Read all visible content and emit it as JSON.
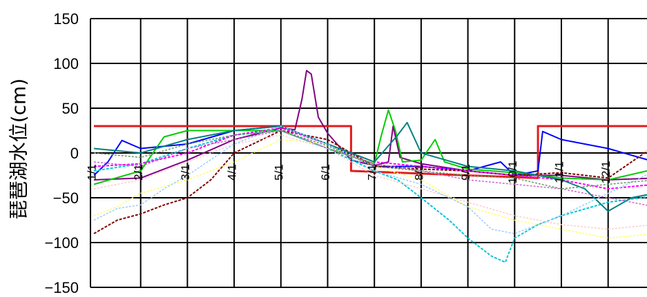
{
  "chart_data": {
    "type": "line",
    "title": "",
    "xlabel": "",
    "ylabel": "琵琶湖水位(cm)",
    "ylim": [
      -150,
      150
    ],
    "yticks": [
      150,
      100,
      50,
      0,
      -50,
      -100,
      -150
    ],
    "xlim": [
      0,
      12
    ],
    "xticks": [
      {
        "x": 0,
        "label": "1/1"
      },
      {
        "x": 1,
        "label": "2/1"
      },
      {
        "x": 2,
        "label": "3/1"
      },
      {
        "x": 3,
        "label": "4/1"
      },
      {
        "x": 4,
        "label": "5/1"
      },
      {
        "x": 5,
        "label": "6/1"
      },
      {
        "x": 6,
        "label": "7/1"
      },
      {
        "x": 7,
        "label": "8/1"
      },
      {
        "x": 8,
        "label": "9/1"
      },
      {
        "x": 9,
        "label": "10/1"
      },
      {
        "x": 10,
        "label": "11/1"
      },
      {
        "x": 11,
        "label": "12/1"
      }
    ],
    "grid": true,
    "series": [
      {
        "color": "#e31a1c",
        "width": 3,
        "dash": "",
        "points": [
          [
            0,
            30
          ],
          [
            5.5,
            30
          ],
          [
            5.5,
            -20
          ],
          [
            9.5,
            -28
          ],
          [
            9.5,
            30
          ],
          [
            12,
            30
          ]
        ]
      },
      {
        "color": "#800080",
        "width": 2,
        "dash": "",
        "points": [
          [
            0,
            -30
          ],
          [
            1,
            -28
          ],
          [
            2,
            -8
          ],
          [
            3,
            15
          ],
          [
            4,
            28
          ],
          [
            4.3,
            26
          ],
          [
            4.45,
            60
          ],
          [
            4.55,
            92
          ],
          [
            4.65,
            88
          ],
          [
            4.8,
            40
          ],
          [
            5,
            22
          ],
          [
            5.5,
            -8
          ],
          [
            6,
            -14
          ],
          [
            6.3,
            -10
          ],
          [
            6.4,
            30
          ],
          [
            6.55,
            -5
          ],
          [
            7,
            -12
          ],
          [
            8,
            -20
          ],
          [
            9,
            -25
          ],
          [
            10,
            -25
          ],
          [
            11,
            -30
          ],
          [
            12,
            -28
          ]
        ]
      },
      {
        "color": "#0000ff",
        "width": 2,
        "dash": "",
        "points": [
          [
            0,
            -25
          ],
          [
            0.3,
            -10
          ],
          [
            0.6,
            14
          ],
          [
            1,
            5
          ],
          [
            2,
            10
          ],
          [
            3,
            25
          ],
          [
            4,
            30
          ],
          [
            5,
            10
          ],
          [
            6,
            -15
          ],
          [
            7,
            -15
          ],
          [
            8,
            -20
          ],
          [
            8.7,
            -10
          ],
          [
            9,
            -25
          ],
          [
            9.5,
            -20
          ],
          [
            9.6,
            24
          ],
          [
            10,
            15
          ],
          [
            11,
            5
          ],
          [
            12,
            -10
          ]
        ]
      },
      {
        "color": "#00cc00",
        "width": 2,
        "dash": "",
        "points": [
          [
            0,
            -35
          ],
          [
            1,
            -20
          ],
          [
            1.5,
            18
          ],
          [
            2,
            25
          ],
          [
            3,
            25
          ],
          [
            4,
            25
          ],
          [
            5,
            5
          ],
          [
            6,
            -12
          ],
          [
            6.15,
            20
          ],
          [
            6.3,
            48
          ],
          [
            6.45,
            25
          ],
          [
            6.6,
            -10
          ],
          [
            7,
            -8
          ],
          [
            7.3,
            15
          ],
          [
            7.5,
            -10
          ],
          [
            8,
            -18
          ],
          [
            9,
            -22
          ],
          [
            10,
            -28
          ],
          [
            11,
            -30
          ],
          [
            12,
            -18
          ]
        ]
      },
      {
        "color": "#00c8d8",
        "width": 2,
        "dash": "4,2",
        "points": [
          [
            0,
            -20
          ],
          [
            1,
            -12
          ],
          [
            2,
            5
          ],
          [
            3,
            20
          ],
          [
            4,
            25
          ],
          [
            5,
            5
          ],
          [
            6,
            -20
          ],
          [
            6.5,
            -30
          ],
          [
            7,
            -50
          ],
          [
            7.6,
            -75
          ],
          [
            8,
            -95
          ],
          [
            8.5,
            -115
          ],
          [
            8.8,
            -122
          ],
          [
            9,
            -95
          ],
          [
            9.5,
            -80
          ],
          [
            10,
            -70
          ],
          [
            11,
            -55
          ],
          [
            12,
            -48
          ]
        ]
      },
      {
        "color": "#800000",
        "width": 2,
        "dash": "4,2",
        "points": [
          [
            0,
            -90
          ],
          [
            0.5,
            -75
          ],
          [
            1,
            -68
          ],
          [
            1.5,
            -58
          ],
          [
            2,
            -50
          ],
          [
            2.5,
            -30
          ],
          [
            3,
            0
          ],
          [
            4,
            25
          ],
          [
            5,
            15
          ],
          [
            6,
            -15
          ],
          [
            7,
            -18
          ],
          [
            8,
            -20
          ],
          [
            9,
            -25
          ],
          [
            10,
            -22
          ],
          [
            11,
            -28
          ],
          [
            11.5,
            -10
          ],
          [
            12,
            8
          ]
        ]
      },
      {
        "color": "#ff00ff",
        "width": 2,
        "dash": "4,2",
        "points": [
          [
            0,
            -15
          ],
          [
            1,
            -12
          ],
          [
            2,
            0
          ],
          [
            3,
            20
          ],
          [
            4,
            28
          ],
          [
            5,
            10
          ],
          [
            6,
            -10
          ],
          [
            7,
            -15
          ],
          [
            8,
            -20
          ],
          [
            9,
            -25
          ],
          [
            10,
            -30
          ],
          [
            11,
            -40
          ],
          [
            12,
            -35
          ]
        ]
      },
      {
        "color": "#ffff66",
        "width": 1.5,
        "dash": "3,2",
        "points": [
          [
            0,
            -70
          ],
          [
            0.5,
            -60
          ],
          [
            1,
            -45
          ],
          [
            2,
            -30
          ],
          [
            3,
            -10
          ],
          [
            4,
            15
          ],
          [
            5,
            10
          ],
          [
            6,
            -15
          ],
          [
            7,
            -30
          ],
          [
            8,
            -60
          ],
          [
            9,
            -75
          ],
          [
            10,
            -85
          ],
          [
            11,
            -95
          ],
          [
            12,
            -90
          ]
        ]
      },
      {
        "color": "#008080",
        "width": 2,
        "dash": "",
        "points": [
          [
            0,
            5
          ],
          [
            1,
            0
          ],
          [
            2,
            15
          ],
          [
            3,
            25
          ],
          [
            4,
            30
          ],
          [
            5,
            10
          ],
          [
            6,
            -10
          ],
          [
            6.5,
            20
          ],
          [
            6.7,
            34
          ],
          [
            7,
            0
          ],
          [
            8,
            -15
          ],
          [
            9,
            -20
          ],
          [
            10,
            -30
          ],
          [
            10.5,
            -40
          ],
          [
            11,
            -65
          ],
          [
            11.5,
            -50
          ],
          [
            12,
            -45
          ]
        ]
      },
      {
        "color": "#ffcccc",
        "width": 1.5,
        "dash": "3,2",
        "points": [
          [
            0,
            -40
          ],
          [
            1,
            -30
          ],
          [
            2,
            -10
          ],
          [
            3,
            10
          ],
          [
            4,
            20
          ],
          [
            5,
            5
          ],
          [
            6,
            -25
          ],
          [
            7,
            -40
          ],
          [
            8,
            -55
          ],
          [
            9,
            -70
          ],
          [
            10,
            -80
          ],
          [
            11,
            -85
          ],
          [
            12,
            -80
          ]
        ]
      },
      {
        "color": "#99ccff",
        "width": 1.5,
        "dash": "3,2",
        "points": [
          [
            0,
            -75
          ],
          [
            0.5,
            -62
          ],
          [
            1,
            -58
          ],
          [
            1.5,
            -40
          ],
          [
            2,
            -25
          ],
          [
            3,
            10
          ],
          [
            4,
            30
          ],
          [
            5,
            10
          ],
          [
            6,
            -20
          ],
          [
            7,
            -35
          ],
          [
            8,
            -60
          ],
          [
            8.5,
            -85
          ],
          [
            9,
            -90
          ],
          [
            10,
            -70
          ],
          [
            11,
            -45
          ],
          [
            12,
            -20
          ]
        ]
      },
      {
        "color": "#cc66cc",
        "width": 1.5,
        "dash": "3,2",
        "points": [
          [
            0,
            -10
          ],
          [
            1,
            -15
          ],
          [
            2,
            5
          ],
          [
            3,
            15
          ],
          [
            4,
            25
          ],
          [
            5,
            5
          ],
          [
            6,
            -12
          ],
          [
            7,
            -20
          ],
          [
            8,
            -30
          ],
          [
            9,
            -35
          ],
          [
            10,
            -40
          ],
          [
            11,
            -50
          ],
          [
            12,
            -60
          ]
        ]
      },
      {
        "color": "#669966",
        "width": 1.5,
        "dash": "3,2",
        "points": [
          [
            0,
            0
          ],
          [
            1,
            -5
          ],
          [
            2,
            10
          ],
          [
            3,
            20
          ],
          [
            4,
            25
          ],
          [
            5,
            8
          ],
          [
            6,
            -15
          ],
          [
            7,
            -20
          ],
          [
            8,
            -25
          ],
          [
            9,
            -28
          ],
          [
            10,
            -40
          ],
          [
            11,
            -35
          ],
          [
            12,
            -30
          ]
        ]
      }
    ]
  }
}
